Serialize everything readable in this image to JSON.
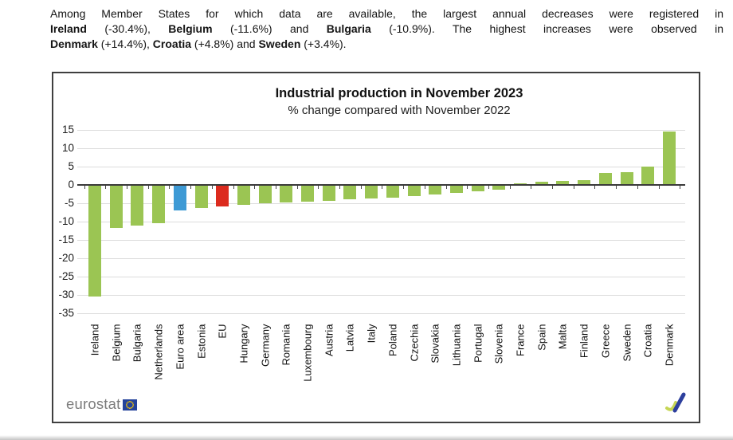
{
  "intro": {
    "lines": [
      {
        "segments": [
          {
            "t": "Among Member States for which data are available, the largest annual decreases were registered in",
            "b": false
          }
        ]
      },
      {
        "segments": [
          {
            "t": "Ireland",
            "b": true
          },
          {
            "t": " (-30.4%), ",
            "b": false
          },
          {
            "t": "Belgium",
            "b": true
          },
          {
            "t": " (-11.6%) and ",
            "b": false
          },
          {
            "t": "Bulgaria",
            "b": true
          },
          {
            "t": " (-10.9%). The highest increases were observed in",
            "b": false
          }
        ]
      },
      {
        "segments": [
          {
            "t": "Denmark",
            "b": true
          },
          {
            "t": " (+14.4%), ",
            "b": false
          },
          {
            "t": "Croatia",
            "b": true
          },
          {
            "t": " (+4.8%) and ",
            "b": false
          },
          {
            "t": "Sweden",
            "b": true
          },
          {
            "t": " (+3.4%).",
            "b": false
          }
        ]
      }
    ]
  },
  "chart_data": {
    "type": "bar",
    "title": "Industrial production in November 2023",
    "subtitle": "% change compared with November 2022",
    "categories": [
      "Ireland",
      "Belgium",
      "Bulgaria",
      "Netherlands",
      "Euro area",
      "Estonia",
      "EU",
      "Hungary",
      "Germany",
      "Romania",
      "Luxembourg",
      "Austria",
      "Latvia",
      "Italy",
      "Poland",
      "Czechia",
      "Slovakia",
      "Lithuania",
      "Portugal",
      "Slovenia",
      "France",
      "Spain",
      "Malta",
      "Finland",
      "Greece",
      "Sweden",
      "Croatia",
      "Denmark"
    ],
    "values": [
      -30.4,
      -11.6,
      -10.9,
      -10.4,
      -6.8,
      -6.2,
      -5.8,
      -5.4,
      -4.9,
      -4.6,
      -4.4,
      -4.2,
      -3.9,
      -3.5,
      -3.4,
      -3.0,
      -2.6,
      -2.1,
      -1.6,
      -1.1,
      0.4,
      0.8,
      1.0,
      1.2,
      3.1,
      3.4,
      4.8,
      14.4
    ],
    "yticks": [
      15,
      10,
      5,
      0,
      -5,
      -10,
      -15,
      -20,
      -25,
      -30,
      -35
    ],
    "ylim": [
      -36.5,
      17.5
    ],
    "grid": true,
    "legend_position": "none",
    "colors": {
      "default": "#9bc553",
      "euro_area": "#3e9ad5",
      "eu": "#dc2b1e"
    },
    "special_bars": {
      "Euro area": "euro_area",
      "EU": "eu"
    }
  },
  "footer": {
    "brand": "eurostat"
  },
  "icons": {
    "brand_flag": "eu-flag-icon",
    "corner_mark": "chart-swoosh-icon"
  }
}
